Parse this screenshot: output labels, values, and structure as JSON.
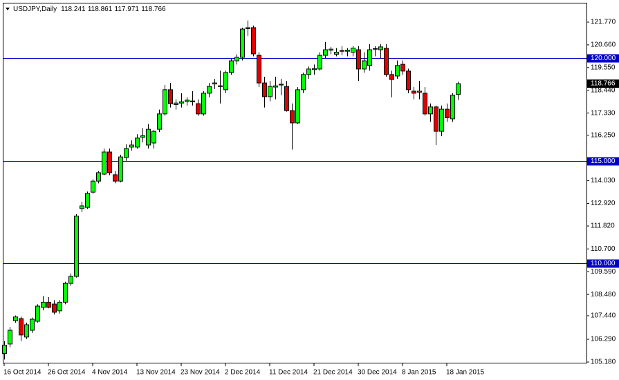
{
  "chart_data": {
    "type": "candlestick",
    "title": "USDJPY,Daily",
    "categories": [
      "16 Oct 2014",
      null,
      null,
      null,
      null,
      null,
      null,
      null,
      "26 Oct 2014",
      null,
      null,
      null,
      null,
      null,
      null,
      null,
      "4 Nov 2014",
      null,
      null,
      null,
      null,
      null,
      null,
      null,
      "13 Nov 2014",
      null,
      null,
      null,
      null,
      null,
      null,
      null,
      "23 Nov 2014",
      null,
      null,
      null,
      null,
      null,
      null,
      null,
      "2 Dec 2014",
      null,
      null,
      null,
      null,
      null,
      null,
      null,
      "11 Dec 2014",
      null,
      null,
      null,
      null,
      null,
      null,
      null,
      "21 Dec 2014",
      null,
      null,
      null,
      null,
      null,
      null,
      null,
      "30 Dec 2014",
      null,
      null,
      null,
      null,
      null,
      null,
      null,
      "8 Jan 2015",
      null,
      null,
      null,
      null,
      null,
      null,
      null,
      "18 Jan 2015",
      null,
      null
    ],
    "open": [
      105.6,
      106.06,
      107.2,
      107.3,
      106.4,
      106.73,
      107.17,
      107.85,
      108.1,
      108.01,
      107.68,
      108.1,
      109.02,
      109.36,
      112.67,
      112.73,
      113.47,
      114.01,
      114.35,
      115.43,
      114.32,
      114.01,
      115.16,
      115.67,
      115.67,
      116.15,
      115.77,
      115.87,
      116.54,
      117.29,
      118.47,
      117.74,
      117.82,
      117.9,
      117.88,
      117.79,
      117.29,
      118.3,
      118.75,
      118.63,
      118.47,
      119.31,
      119.88,
      120.05,
      121.45,
      121.5,
      120.15,
      118.8,
      118.13,
      118.6,
      118.7,
      118.63,
      117.45,
      116.85,
      118.47,
      119.21,
      119.45,
      119.48,
      120.15,
      120.4,
      120.2,
      120.35,
      120.35,
      120.3,
      120.42,
      119.48,
      119.65,
      120.45,
      120.42,
      120.49,
      119.21,
      119.14,
      119.71,
      119.38,
      118.4,
      118.35,
      118.3,
      117.29,
      117.63,
      116.44,
      117.52,
      117.05,
      118.241
    ],
    "high": [
      106.2,
      106.9,
      107.45,
      107.4,
      107.1,
      107.35,
      108.0,
      108.4,
      108.35,
      108.2,
      108.2,
      109.1,
      109.5,
      112.4,
      113.0,
      113.5,
      114.1,
      114.5,
      115.6,
      115.6,
      114.5,
      115.3,
      115.8,
      116.0,
      116.3,
      116.6,
      116.8,
      116.5,
      117.5,
      118.7,
      118.8,
      118.0,
      118.3,
      118.1,
      118.4,
      118.0,
      118.4,
      118.8,
      119.0,
      119.4,
      119.4,
      120.0,
      120.2,
      121.5,
      121.85,
      121.6,
      120.3,
      119.1,
      118.9,
      119.1,
      119.0,
      118.9,
      117.8,
      118.6,
      119.3,
      119.6,
      119.7,
      120.3,
      120.8,
      120.55,
      120.5,
      120.6,
      120.5,
      120.6,
      120.6,
      120.3,
      120.7,
      120.6,
      120.7,
      120.7,
      119.4,
      119.9,
      119.9,
      119.5,
      118.6,
      118.9,
      118.6,
      117.8,
      117.7,
      117.7,
      117.8,
      118.3,
      118.861
    ],
    "low": [
      105.3,
      105.9,
      107.1,
      106.2,
      106.3,
      106.6,
      107.1,
      107.7,
      107.8,
      107.5,
      107.55,
      108.0,
      108.9,
      109.3,
      112.5,
      112.65,
      113.4,
      113.9,
      114.3,
      114.3,
      113.9,
      113.95,
      115.0,
      115.5,
      115.6,
      115.9,
      115.6,
      115.6,
      116.4,
      117.2,
      117.6,
      117.5,
      117.6,
      117.7,
      117.7,
      117.2,
      117.2,
      118.1,
      118.5,
      117.8,
      118.3,
      119.2,
      119.7,
      119.9,
      121.1,
      120.1,
      118.6,
      117.6,
      117.9,
      118.0,
      118.2,
      117.4,
      115.55,
      116.8,
      118.3,
      119.0,
      119.2,
      119.4,
      120.0,
      120.2,
      120.1,
      120.15,
      120.1,
      120.1,
      118.9,
      119.3,
      119.4,
      120.1,
      120.0,
      119.1,
      118.1,
      119.0,
      119.2,
      118.3,
      118.0,
      118.0,
      117.2,
      116.9,
      115.77,
      116.2,
      116.9,
      116.9,
      117.971
    ],
    "close": [
      106.0,
      106.73,
      107.38,
      106.5,
      107.0,
      107.27,
      107.91,
      108.1,
      107.85,
      107.61,
      108.1,
      109.02,
      109.36,
      112.3,
      112.8,
      113.41,
      114.01,
      114.42,
      115.43,
      114.42,
      114.01,
      115.19,
      115.6,
      115.77,
      116.11,
      116.22,
      116.54,
      116.44,
      117.29,
      118.47,
      117.79,
      117.82,
      117.88,
      117.96,
      117.92,
      117.29,
      118.3,
      118.63,
      118.8,
      118.66,
      119.31,
      119.88,
      120.05,
      121.43,
      121.5,
      120.22,
      118.8,
      118.13,
      118.63,
      118.66,
      118.74,
      117.45,
      116.85,
      118.47,
      119.21,
      119.48,
      119.5,
      120.15,
      120.42,
      120.45,
      120.3,
      120.38,
      120.4,
      120.5,
      119.48,
      119.88,
      120.42,
      120.48,
      120.56,
      119.21,
      118.97,
      119.65,
      119.38,
      118.47,
      118.3,
      118.4,
      117.29,
      117.63,
      116.44,
      117.52,
      117.1,
      118.2,
      118.766
    ],
    "up_color": "#00ff00",
    "down_color": "#e00000",
    "ylim": [
      105.146,
      122.714
    ],
    "yticks": [
      {
        "value": 121.77,
        "label": "121.770"
      },
      {
        "value": 120.66,
        "label": "120.660"
      },
      {
        "value": 119.55,
        "label": "119.550"
      },
      {
        "value": 118.44,
        "label": "118.440"
      },
      {
        "value": 117.33,
        "label": "117.330"
      },
      {
        "value": 116.25,
        "label": "116.250"
      },
      {
        "value": 114.03,
        "label": "114.030"
      },
      {
        "value": 112.92,
        "label": "112.920"
      },
      {
        "value": 111.82,
        "label": "111.820"
      },
      {
        "value": 110.7,
        "label": "110.700"
      },
      {
        "value": 109.59,
        "label": "109.590"
      },
      {
        "value": 108.48,
        "label": "108.480"
      },
      {
        "value": 107.44,
        "label": "107.440"
      },
      {
        "value": 106.29,
        "label": "106.290"
      },
      {
        "value": 105.18,
        "label": "105.180"
      }
    ],
    "hlines": [
      {
        "value": 120,
        "label": "120.000"
      },
      {
        "value": 115,
        "label": "115.000"
      },
      {
        "value": 110,
        "label": "110.000"
      }
    ],
    "hline_color": "#0000c8"
  }
}
